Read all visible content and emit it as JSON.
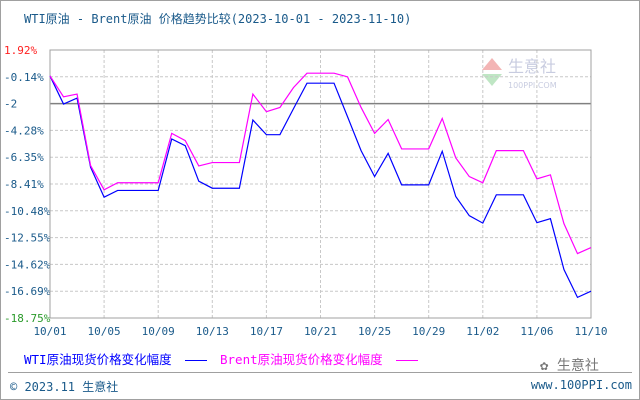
{
  "title": "WTI原油 - Brent原油 价格趋势比较(2023-10-01 - 2023-11-10)",
  "chart_data": {
    "type": "line",
    "title": "WTI原油 - Brent原油 价格趋势比较(2023-10-01 - 2023-11-10)",
    "x": [
      "10/01",
      "10/02",
      "10/03",
      "10/04",
      "10/05",
      "10/06",
      "10/07",
      "10/08",
      "10/09",
      "10/10",
      "10/11",
      "10/12",
      "10/13",
      "10/14",
      "10/15",
      "10/16",
      "10/17",
      "10/18",
      "10/19",
      "10/20",
      "10/21",
      "10/22",
      "10/23",
      "10/24",
      "10/25",
      "10/26",
      "10/27",
      "10/28",
      "10/29",
      "10/30",
      "10/31",
      "11/01",
      "11/02",
      "11/03",
      "11/04",
      "11/05",
      "11/06",
      "11/07",
      "11/08",
      "11/09",
      "11/10"
    ],
    "x_tick_labels": [
      "10/01",
      "10/05",
      "10/09",
      "10/13",
      "10/17",
      "10/21",
      "10/25",
      "10/29",
      "11/02",
      "11/06",
      "11/10"
    ],
    "y_tick_labels": [
      "1.92%",
      "-0.14%",
      "-2",
      "-4.28%",
      "-6.35%",
      "-8.41%",
      "-10.48%",
      "-12.55%",
      "-14.62%",
      "-16.69%",
      "-18.75%"
    ],
    "ylim": [
      -18.75,
      1.92
    ],
    "grid": true,
    "legend_placement": "bottom",
    "series": [
      {
        "name": "WTI原油现货价格变化幅度",
        "color": "#0000ff",
        "values": [
          -0.08,
          -2.25,
          -1.79,
          -7.12,
          -9.43,
          -8.91,
          -8.91,
          -8.91,
          -8.91,
          -4.94,
          -5.46,
          -8.2,
          -8.74,
          -8.74,
          -8.74,
          -3.48,
          -4.61,
          -4.61,
          -2.61,
          -0.64,
          -0.64,
          -0.64,
          -3.23,
          -5.84,
          -7.84,
          -6.05,
          -8.48,
          -8.48,
          -8.48,
          -5.89,
          -9.38,
          -10.86,
          -11.43,
          -9.25,
          -9.25,
          -9.25,
          -11.4,
          -11.09,
          -15.01,
          -17.16,
          -16.68
        ]
      },
      {
        "name": "Brent原油现货价格变化幅度",
        "color": "#ff00ff",
        "values": [
          -0.08,
          -1.69,
          -1.48,
          -6.99,
          -8.86,
          -8.32,
          -8.32,
          -8.32,
          -8.32,
          -4.51,
          -5.07,
          -7.02,
          -6.76,
          -6.76,
          -6.76,
          -1.48,
          -2.84,
          -2.51,
          -0.98,
          0.13,
          0.13,
          0.13,
          -0.15,
          -2.51,
          -4.51,
          -3.44,
          -5.71,
          -5.71,
          -5.71,
          -3.36,
          -6.4,
          -7.84,
          -8.32,
          -5.84,
          -5.84,
          -5.84,
          -8.02,
          -7.71,
          -11.47,
          -13.78,
          -13.32
        ]
      }
    ]
  },
  "legend": {
    "wti": "WTI原油现货价格变化幅度",
    "brent": "Brent原油现货价格变化幅度"
  },
  "footer": {
    "copyright": "© 2023.11 生意社",
    "url": "www.100PPI.com",
    "wechat": "生意社"
  },
  "watermark": {
    "name": "生意社",
    "site": "100PPI.COM"
  }
}
